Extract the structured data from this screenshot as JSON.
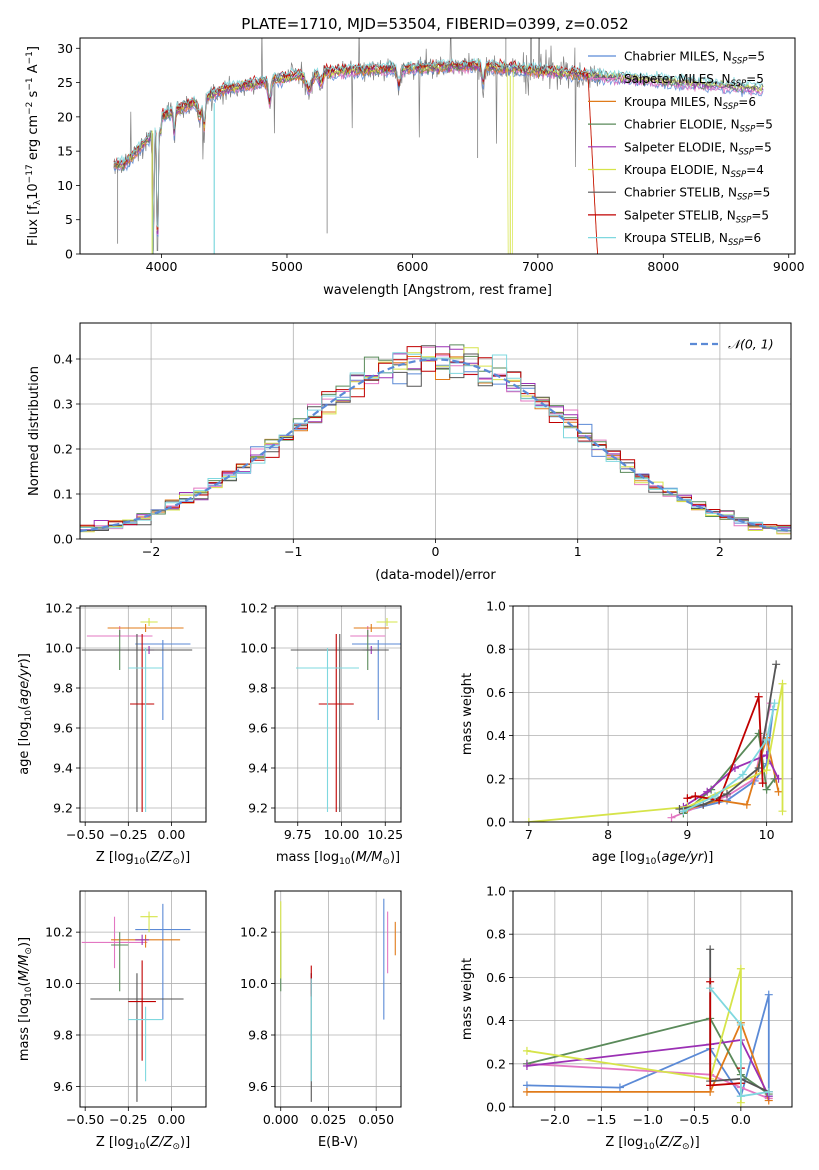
{
  "figure_title": "PLATE=1710, MJD=53504, FIBERID=0399, z=0.052",
  "colors": {
    "Chabrier MILES": "#5b8ad6",
    "Salpeter MILES": "#e377c2",
    "Kroupa MILES": "#e07b1a",
    "Chabrier ELODIE": "#5a8a5a",
    "Salpeter ELODIE": "#9b30b4",
    "Kroupa ELODIE": "#d6e44a",
    "Chabrier STELIB": "#555555",
    "Salpeter STELIB": "#c00000",
    "Kroupa STELIB": "#7fd8df",
    "data": "#808080",
    "normal": "#5b8ad6"
  },
  "chart_data": [
    {
      "id": "spectrum",
      "type": "line",
      "title": "PLATE=1710, MJD=53504, FIBERID=0399, z=0.052",
      "xlabel": "wavelength [Angstrom, rest frame]",
      "ylabel": "Flux [f_λ10^-17 erg cm^-2 s^-1 A^-1]",
      "xlim": [
        3350,
        9050
      ],
      "ylim": [
        0,
        31.5
      ],
      "xticks": [
        4000,
        5000,
        6000,
        7000,
        8000,
        9000
      ],
      "yticks": [
        0,
        5,
        10,
        15,
        20,
        25,
        30
      ],
      "legend": "top-right",
      "data_range": [
        3620,
        7500
      ],
      "model_range": [
        3620,
        8800
      ],
      "series": [
        {
          "name": "Chabrier MILES",
          "label_main": "Chabrier MILES, N",
          "sub": "SSP",
          "tail": "=5"
        },
        {
          "name": "Salpeter MILES",
          "label_main": "Salpeter MILES, N",
          "sub": "SSP",
          "tail": "=5"
        },
        {
          "name": "Kroupa MILES",
          "label_main": "Kroupa MILES, N",
          "sub": "SSP",
          "tail": "=6"
        },
        {
          "name": "Chabrier ELODIE",
          "label_main": "Chabrier ELODIE, N",
          "sub": "SSP",
          "tail": "=5"
        },
        {
          "name": "Salpeter ELODIE",
          "label_main": "Salpeter ELODIE, N",
          "sub": "SSP",
          "tail": "=5"
        },
        {
          "name": "Kroupa ELODIE",
          "label_main": "Kroupa ELODIE, N",
          "sub": "SSP",
          "tail": "=4"
        },
        {
          "name": "Chabrier STELIB",
          "label_main": "Chabrier STELIB, N",
          "sub": "SSP",
          "tail": "=5"
        },
        {
          "name": "Salpeter STELIB",
          "label_main": "Salpeter STELIB, N",
          "sub": "SSP",
          "tail": "=5"
        },
        {
          "name": "Kroupa STELIB",
          "label_main": "Kroupa STELIB, N",
          "sub": "SSP",
          "tail": "=6"
        }
      ]
    },
    {
      "id": "residuals",
      "type": "line",
      "xlabel": "(data-model)/error",
      "ylabel": "Normed distribution",
      "xlim": [
        -2.5,
        2.5
      ],
      "ylim": [
        0,
        0.48
      ],
      "xticks": [
        -2,
        -1,
        0,
        1,
        2
      ],
      "yticks": [
        0.0,
        0.1,
        0.2,
        0.3,
        0.4
      ],
      "grid": true,
      "legend": "top-right",
      "legend_label": "𝒩(0, 1)",
      "bin_width": 0.1
    },
    {
      "id": "age_vs_Z",
      "type": "scatter",
      "xlabel": "Z [log10(Z/Z⊙)]",
      "ylabel": "age  [log10(age/yr)]",
      "xlim": [
        -0.53,
        0.2
      ],
      "ylim": [
        9.13,
        10.21
      ],
      "xticks": [
        -0.5,
        -0.25,
        0.0
      ],
      "xtick_labels": [
        "−0.50",
        "−0.25",
        "0.00"
      ],
      "yticks": [
        9.2,
        9.4,
        9.6,
        9.8,
        10.0,
        10.2
      ],
      "grid": true,
      "points": [
        {
          "series": "Chabrier MILES",
          "x": -0.05,
          "y": 10.02,
          "xerr": 0.16,
          "yerr": [
            0.38,
            0.02
          ]
        },
        {
          "series": "Salpeter MILES",
          "x": -0.3,
          "y": 10.06,
          "xerr": 0.19,
          "yerr": [
            0.0,
            0.05
          ]
        },
        {
          "series": "Kroupa MILES",
          "x": -0.15,
          "y": 10.1,
          "xerr": 0.22,
          "yerr": [
            0.02,
            0.02
          ]
        },
        {
          "series": "Chabrier ELODIE",
          "x": -0.3,
          "y": 9.99,
          "xerr": 0.05,
          "yerr": [
            0.1,
            0.1
          ]
        },
        {
          "series": "Salpeter ELODIE",
          "x": -0.13,
          "y": 9.99,
          "xerr": 0.03,
          "yerr": [
            0.02,
            0.02
          ]
        },
        {
          "series": "Kroupa ELODIE",
          "x": -0.13,
          "y": 10.13,
          "xerr": 0.05,
          "yerr": [
            0.02,
            0.02
          ]
        },
        {
          "series": "Chabrier STELIB",
          "x": -0.2,
          "y": 9.99,
          "xerr": 0.32,
          "yerr": [
            0.81,
            0.08
          ]
        },
        {
          "series": "Salpeter STELIB",
          "x": -0.17,
          "y": 9.72,
          "xerr": 0.07,
          "yerr": [
            0.54,
            0.35
          ]
        },
        {
          "series": "Kroupa STELIB",
          "x": -0.15,
          "y": 9.9,
          "xerr": 0.1,
          "yerr": [
            0.72,
            0.1
          ]
        }
      ]
    },
    {
      "id": "age_vs_mass",
      "type": "scatter",
      "xlabel": "mass [log10(M/M⊙)]",
      "ylabel": "",
      "xlim": [
        9.62,
        10.34
      ],
      "ylim": [
        9.13,
        10.21
      ],
      "xticks": [
        9.75,
        10.0,
        10.25
      ],
      "xtick_labels": [
        "9.75",
        "10.00",
        "10.25"
      ],
      "yticks": [
        9.2,
        9.4,
        9.6,
        9.8,
        10.0,
        10.2
      ],
      "grid": true,
      "points": [
        {
          "series": "Chabrier MILES",
          "x": 10.21,
          "y": 10.02,
          "xerr": 0.15,
          "yerr": [
            0.38,
            0.02
          ]
        },
        {
          "series": "Salpeter MILES",
          "x": 10.15,
          "y": 10.06,
          "xerr": 0.1,
          "yerr": [
            0.0,
            0.05
          ]
        },
        {
          "series": "Kroupa MILES",
          "x": 10.17,
          "y": 10.1,
          "xerr": 0.1,
          "yerr": [
            0.02,
            0.02
          ]
        },
        {
          "series": "Chabrier ELODIE",
          "x": 10.15,
          "y": 9.99,
          "xerr": 0.03,
          "yerr": [
            0.1,
            0.1
          ]
        },
        {
          "series": "Salpeter ELODIE",
          "x": 10.17,
          "y": 9.99,
          "xerr": 0.03,
          "yerr": [
            0.02,
            0.02
          ]
        },
        {
          "series": "Kroupa ELODIE",
          "x": 10.26,
          "y": 10.13,
          "xerr": 0.06,
          "yerr": [
            0.02,
            0.02
          ]
        },
        {
          "series": "Chabrier STELIB",
          "x": 9.99,
          "y": 9.99,
          "xerr": 0.28,
          "yerr": [
            0.81,
            0.08
          ]
        },
        {
          "series": "Salpeter STELIB",
          "x": 9.97,
          "y": 9.72,
          "xerr": 0.1,
          "yerr": [
            0.54,
            0.35
          ]
        },
        {
          "series": "Kroupa STELIB",
          "x": 9.92,
          "y": 9.9,
          "xerr": 0.18,
          "yerr": [
            0.72,
            0.1
          ]
        }
      ]
    },
    {
      "id": "mass_vs_Z",
      "type": "scatter",
      "xlabel": "Z [log10(Z/Z⊙)]",
      "ylabel": "mass [log10(M/M⊙)]",
      "xlim": [
        -0.53,
        0.2
      ],
      "ylim": [
        9.52,
        10.36
      ],
      "xticks": [
        -0.5,
        -0.25,
        0.0
      ],
      "xtick_labels": [
        "−0.50",
        "−0.25",
        "0.00"
      ],
      "yticks": [
        9.6,
        9.8,
        10.0,
        10.2
      ],
      "grid": true,
      "points": [
        {
          "series": "Chabrier MILES",
          "x": -0.05,
          "y": 10.21,
          "xerr": 0.16,
          "yerr": [
            0.35,
            0.1
          ]
        },
        {
          "series": "Salpeter MILES",
          "x": -0.33,
          "y": 10.16,
          "xerr": 0.19,
          "yerr": [
            0.1,
            0.1
          ]
        },
        {
          "series": "Kroupa MILES",
          "x": -0.15,
          "y": 10.17,
          "xerr": 0.2,
          "yerr": [
            0.03,
            0.02
          ]
        },
        {
          "series": "Chabrier ELODIE",
          "x": -0.3,
          "y": 10.15,
          "xerr": 0.05,
          "yerr": [
            0.18,
            0.05
          ]
        },
        {
          "series": "Salpeter ELODIE",
          "x": -0.17,
          "y": 10.17,
          "xerr": 0.04,
          "yerr": [
            0.02,
            0.02
          ]
        },
        {
          "series": "Kroupa ELODIE",
          "x": -0.13,
          "y": 10.26,
          "xerr": 0.05,
          "yerr": [
            0.06,
            0.02
          ]
        },
        {
          "series": "Chabrier STELIB",
          "x": -0.2,
          "y": 9.94,
          "xerr": 0.27,
          "yerr": [
            0.4,
            0.1
          ]
        },
        {
          "series": "Salpeter STELIB",
          "x": -0.17,
          "y": 9.93,
          "xerr": 0.08,
          "yerr": [
            0.23,
            0.16
          ]
        },
        {
          "series": "Kroupa STELIB",
          "x": -0.15,
          "y": 9.86,
          "xerr": 0.1,
          "yerr": [
            0.24,
            0.05
          ]
        }
      ]
    },
    {
      "id": "mass_vs_EBV",
      "type": "scatter",
      "xlabel": "E(B-V)",
      "ylabel": "",
      "xlim": [
        -0.003,
        0.063
      ],
      "ylim": [
        9.52,
        10.36
      ],
      "xticks": [
        0.0,
        0.025,
        0.05
      ],
      "xtick_labels": [
        "0.000",
        "0.025",
        "0.050"
      ],
      "yticks": [
        9.6,
        9.8,
        10.0,
        10.2
      ],
      "grid": true,
      "points": [
        {
          "series": "Chabrier MILES",
          "x": 0.054,
          "y": 10.21,
          "yerr": [
            0.35,
            0.12
          ]
        },
        {
          "series": "Salpeter MILES",
          "x": 0.056,
          "y": 10.16,
          "yerr": [
            0.12,
            0.12
          ]
        },
        {
          "series": "Kroupa MILES",
          "x": 0.06,
          "y": 10.17,
          "yerr": [
            0.06,
            0.07
          ]
        },
        {
          "series": "Chabrier ELODIE",
          "x": 0.0,
          "y": 10.15,
          "yerr": [
            0.18,
            0.05
          ]
        },
        {
          "series": "Salpeter ELODIE",
          "x": 0.016,
          "y": 10.0,
          "yerr": [
            0.04,
            0.04
          ]
        },
        {
          "series": "Kroupa ELODIE",
          "x": 0.0,
          "y": 10.16,
          "yerr": [
            0.14,
            0.16
          ]
        },
        {
          "series": "Chabrier STELIB",
          "x": 0.016,
          "y": 9.94,
          "yerr": [
            0.4,
            0.1
          ]
        },
        {
          "series": "Salpeter STELIB",
          "x": 0.016,
          "y": 10.0,
          "yerr": [
            0.05,
            0.07
          ]
        },
        {
          "series": "Kroupa STELIB",
          "x": 0.016,
          "y": 9.86,
          "yerr": [
            0.24,
            0.16
          ]
        }
      ]
    },
    {
      "id": "weight_vs_age",
      "type": "line",
      "xlabel": "age  [log10(age/yr)]",
      "ylabel": "mass weight",
      "xlim": [
        6.8,
        10.32
      ],
      "ylim": [
        0,
        1.0
      ],
      "xticks": [
        7,
        8,
        9,
        10
      ],
      "yticks": [
        0.0,
        0.2,
        0.4,
        0.6,
        0.8,
        1.0
      ],
      "grid": true,
      "series": [
        {
          "name": "Chabrier MILES",
          "x": [
            8.95,
            9.5,
            9.85,
            10.0,
            10.08
          ],
          "y": [
            0.05,
            0.1,
            0.19,
            0.27,
            0.52
          ]
        },
        {
          "name": "Salpeter MILES",
          "x": [
            8.8,
            9.2,
            9.5,
            9.85,
            10.05
          ],
          "y": [
            0.02,
            0.08,
            0.12,
            0.2,
            0.55
          ]
        },
        {
          "name": "Kroupa MILES",
          "x": [
            9.0,
            9.4,
            9.75,
            10.0,
            10.15
          ],
          "y": [
            0.06,
            0.1,
            0.08,
            0.39,
            0.14
          ]
        },
        {
          "name": "Chabrier ELODIE",
          "x": [
            8.95,
            9.3,
            9.9,
            10.0,
            10.1
          ],
          "y": [
            0.04,
            0.15,
            0.41,
            0.15,
            0.2
          ]
        },
        {
          "name": "Salpeter ELODIE",
          "x": [
            8.95,
            9.25,
            9.6,
            10.0,
            10.15
          ],
          "y": [
            0.07,
            0.14,
            0.25,
            0.31,
            0.2
          ]
        },
        {
          "name": "Kroupa ELODIE",
          "x": [
            7.0,
            9.0,
            10.0,
            10.2,
            10.2
          ],
          "y": [
            0.0,
            0.07,
            0.24,
            0.64,
            0.05
          ]
        },
        {
          "name": "Chabrier STELIB",
          "x": [
            8.9,
            9.2,
            9.5,
            9.9,
            10.12
          ],
          "y": [
            0.06,
            0.08,
            0.13,
            0.25,
            0.73
          ]
        },
        {
          "name": "Salpeter STELIB",
          "x": [
            9.0,
            9.1,
            9.4,
            9.9,
            9.95
          ],
          "y": [
            0.11,
            0.12,
            0.1,
            0.58,
            0.18
          ]
        },
        {
          "name": "Kroupa STELIB",
          "x": [
            8.95,
            9.35,
            9.7,
            10.0,
            10.1
          ],
          "y": [
            0.05,
            0.12,
            0.22,
            0.38,
            0.55
          ]
        }
      ]
    },
    {
      "id": "weight_vs_Z",
      "type": "line",
      "xlabel": "Z [log10(Z/Z⊙)]",
      "ylabel": "mass weight",
      "xlim": [
        -2.45,
        0.55
      ],
      "ylim": [
        0,
        1.0
      ],
      "xticks": [
        -2.0,
        -1.5,
        -1.0,
        -0.5,
        0.0
      ],
      "xtick_labels": [
        "−2.0",
        "−1.5",
        "−1.0",
        "−0.5",
        "0.0"
      ],
      "yticks": [
        0.0,
        0.2,
        0.4,
        0.6,
        0.8,
        1.0
      ],
      "grid": true,
      "series": [
        {
          "name": "Chabrier MILES",
          "x": [
            -2.3,
            -1.3,
            -0.33,
            0.0,
            0.3,
            0.3
          ],
          "y": [
            0.1,
            0.09,
            0.27,
            0.05,
            0.52,
            0.05
          ]
        },
        {
          "name": "Salpeter MILES",
          "x": [
            -2.3,
            -0.33,
            0.0,
            0.3
          ],
          "y": [
            0.2,
            0.15,
            0.09,
            0.04
          ]
        },
        {
          "name": "Kroupa MILES",
          "x": [
            -2.3,
            -0.33,
            0.0,
            0.3
          ],
          "y": [
            0.07,
            0.07,
            0.39,
            0.03
          ]
        },
        {
          "name": "Chabrier ELODIE",
          "x": [
            -2.3,
            -0.33,
            0.0,
            0.3
          ],
          "y": [
            0.2,
            0.41,
            0.15,
            0.06
          ]
        },
        {
          "name": "Salpeter ELODIE",
          "x": [
            -2.3,
            -0.33,
            0.0,
            0.3
          ],
          "y": [
            0.19,
            0.29,
            0.31,
            0.05
          ]
        },
        {
          "name": "Kroupa ELODIE",
          "x": [
            -2.3,
            -0.33,
            0.0,
            0.0
          ],
          "y": [
            0.26,
            0.13,
            0.64,
            0.02
          ]
        },
        {
          "name": "Chabrier STELIB",
          "x": [
            -0.33,
            -0.33,
            0.0,
            0.3
          ],
          "y": [
            0.73,
            0.12,
            0.13,
            0.07
          ]
        },
        {
          "name": "Salpeter STELIB",
          "x": [
            -0.33,
            -0.33,
            0.0,
            0.0
          ],
          "y": [
            0.58,
            0.1,
            0.11,
            0.18
          ]
        },
        {
          "name": "Kroupa STELIB",
          "x": [
            -0.33,
            0.0,
            0.0,
            0.3
          ],
          "y": [
            0.55,
            0.38,
            0.05,
            0.07
          ]
        }
      ]
    }
  ]
}
